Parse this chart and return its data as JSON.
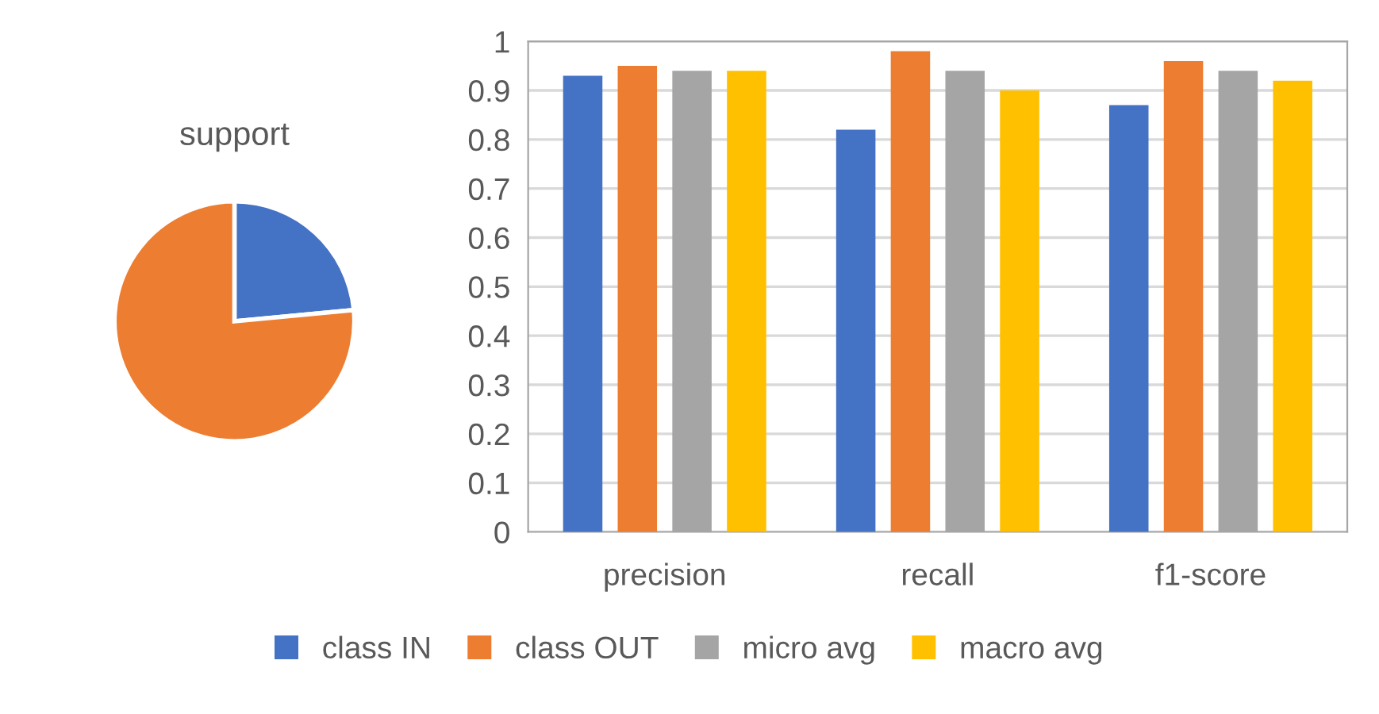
{
  "chart_data": [
    {
      "type": "pie",
      "title": "support",
      "categories": [
        null,
        null
      ],
      "values": [
        23.5,
        76.5
      ],
      "colors": [
        "#4472c4",
        "#ed7d31"
      ]
    },
    {
      "type": "bar",
      "categories": [
        "precision",
        "recall",
        "f1-score"
      ],
      "series": [
        {
          "name": "class IN",
          "color": "#4472c4",
          "values": [
            0.93,
            0.82,
            0.87
          ]
        },
        {
          "name": "class OUT",
          "color": "#ed7d31",
          "values": [
            0.95,
            0.98,
            0.96
          ]
        },
        {
          "name": "micro avg",
          "color": "#a5a5a5",
          "values": [
            0.94,
            0.94,
            0.94
          ]
        },
        {
          "name": "macro avg",
          "color": "#ffc000",
          "values": [
            0.94,
            0.9,
            0.92
          ]
        }
      ],
      "ylim": [
        0,
        1
      ],
      "yticks": [
        0,
        0.1,
        0.2,
        0.3,
        0.4,
        0.5,
        0.6,
        0.7,
        0.8,
        0.9,
        1
      ],
      "grid": "y",
      "legend": "bottom"
    }
  ]
}
